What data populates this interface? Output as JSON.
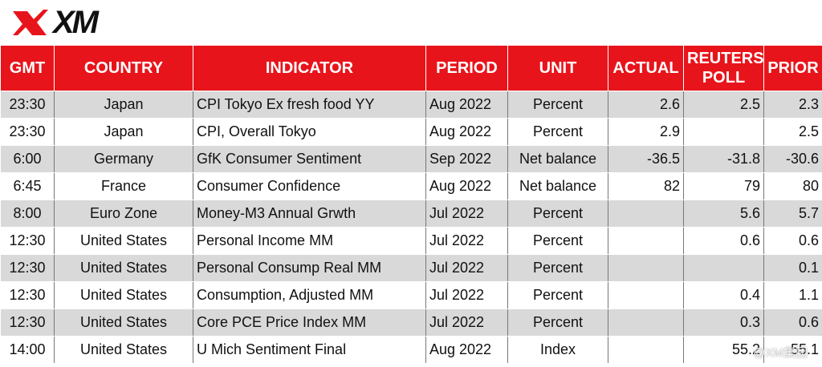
{
  "logo": "XM",
  "table": {
    "header": [
      "GMT",
      "COUNTRY",
      "INDICATOR",
      "PERIOD",
      "UNIT",
      "ACTUAL",
      "REUTERS POLL",
      "PRIOR"
    ],
    "rows": [
      [
        "23:30",
        "Japan",
        "CPI Tokyo Ex fresh food YY",
        "Aug 2022",
        "Percent",
        "2.6",
        "2.5",
        "2.3"
      ],
      [
        "23:30",
        "Japan",
        "CPI, Overall Tokyo",
        "Aug 2022",
        "Percent",
        "2.9",
        null,
        "2.5"
      ],
      [
        "6:00",
        "Germany",
        "GfK Consumer Sentiment",
        "Sep 2022",
        "Net balance",
        "-36.5",
        "-31.8",
        "-30.6"
      ],
      [
        "6:45",
        "France",
        "Consumer Confidence",
        "Aug 2022",
        "Net balance",
        "82",
        "79",
        "80"
      ],
      [
        "8:00",
        "Euro Zone",
        "Money-M3 Annual Grwth",
        "Jul 2022",
        "Percent",
        null,
        "5.6",
        "5.7"
      ],
      [
        "12:30",
        "United States",
        "Personal Income MM",
        "Jul 2022",
        "Percent",
        null,
        "0.6",
        "0.6"
      ],
      [
        "12:30",
        "United States",
        "Personal Consump Real MM",
        "Jul 2022",
        "Percent",
        null,
        null,
        "0.1"
      ],
      [
        "12:30",
        "United States",
        "Consumption, Adjusted MM",
        "Jul 2022",
        "Percent",
        null,
        "0.4",
        "1.1"
      ],
      [
        "12:30",
        "United States",
        "Core PCE Price Index MM",
        "Jul 2022",
        "Percent",
        null,
        "0.3",
        "0.6"
      ],
      [
        "14:00",
        "United States",
        "U Mich Sentiment Final",
        "Aug 2022",
        "Index",
        null,
        "55.2",
        "55.1"
      ]
    ]
  },
  "watermark": "@XM集团"
}
